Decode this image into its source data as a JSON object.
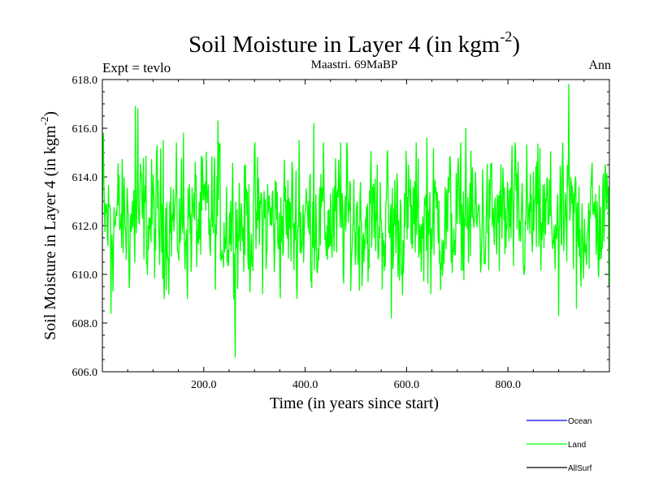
{
  "chart_data": {
    "type": "line",
    "title": "Soil Moisture in Layer 4 (in kgm",
    "title_superscript": "-2",
    "title_suffix": ")",
    "subtitle_left": "Expt = tevlo",
    "subtitle_center": "Maastri.  69MaBP",
    "subtitle_right": "Ann",
    "xlabel": "Time (in years since start)",
    "ylabel": "Soil Moisture in Layer 4 (in kgm",
    "ylabel_superscript": "-2",
    "ylabel_suffix": ")",
    "xlim": [
      0,
      1000
    ],
    "ylim": [
      606.0,
      618.0
    ],
    "x_ticks": [
      200,
      400,
      600,
      800
    ],
    "x_tick_labels": [
      "200.0",
      "400.0",
      "600.0",
      "800.0"
    ],
    "y_ticks": [
      606,
      608,
      610,
      612,
      614,
      616,
      618
    ],
    "y_tick_labels": [
      "606.0",
      "608.0",
      "610.0",
      "612.0",
      "614.0",
      "616.0",
      "618.0"
    ],
    "series": [
      {
        "name": "Land",
        "color": "#00ff00",
        "mean": 612.2,
        "n_points": 1000,
        "anchor_points": [
          {
            "x": 2,
            "y": 615.8
          },
          {
            "x": 17,
            "y": 608.4
          },
          {
            "x": 65,
            "y": 616.9
          },
          {
            "x": 70,
            "y": 616.8
          },
          {
            "x": 120,
            "y": 615.5
          },
          {
            "x": 160,
            "y": 615.8
          },
          {
            "x": 228,
            "y": 616.3
          },
          {
            "x": 262,
            "y": 606.6
          },
          {
            "x": 300,
            "y": 615.2
          },
          {
            "x": 388,
            "y": 615.5
          },
          {
            "x": 417,
            "y": 616.2
          },
          {
            "x": 470,
            "y": 615.4
          },
          {
            "x": 570,
            "y": 608.2
          },
          {
            "x": 640,
            "y": 615.6
          },
          {
            "x": 717,
            "y": 616.0
          },
          {
            "x": 900,
            "y": 608.3
          },
          {
            "x": 920,
            "y": 617.8
          },
          {
            "x": 935,
            "y": 608.6
          },
          {
            "x": 998,
            "y": 613.6
          }
        ]
      },
      {
        "name": "Ocean",
        "color": "#0000ff",
        "values": []
      },
      {
        "name": "AllSurf",
        "color": "#000000",
        "values": []
      }
    ],
    "legend": [
      {
        "label": "Ocean",
        "color": "#0000ff"
      },
      {
        "label": "Land",
        "color": "#00ff00"
      },
      {
        "label": "AllSurf",
        "color": "#000000"
      }
    ],
    "legend_position": "bottom-right"
  }
}
